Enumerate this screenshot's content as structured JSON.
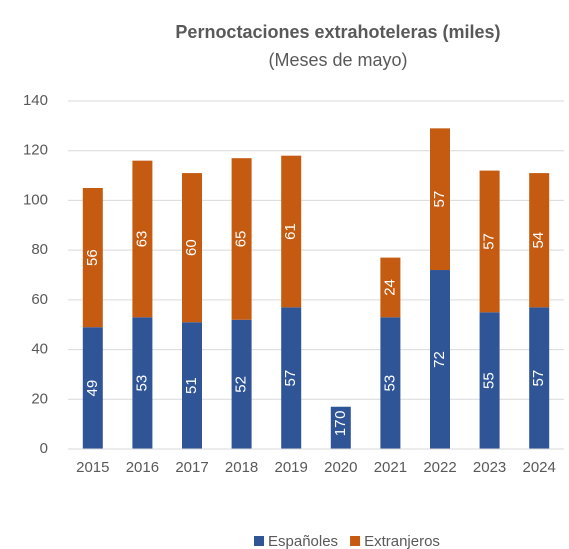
{
  "chart_data": {
    "type": "bar",
    "stacked": true,
    "title": "Pernoctaciones extrahoteleras (miles)",
    "subtitle": "(Meses de mayo)",
    "categories": [
      "2015",
      "2016",
      "2017",
      "2018",
      "2019",
      "2020",
      "2021",
      "2022",
      "2023",
      "2024"
    ],
    "series": [
      {
        "name": "Españoles",
        "color": "#2f5597",
        "values": [
          49,
          53,
          51,
          52,
          57,
          17,
          53,
          72,
          55,
          57
        ]
      },
      {
        "name": "Extranjeros",
        "color": "#c55a11",
        "values": [
          56,
          63,
          60,
          65,
          61,
          0,
          24,
          57,
          57,
          54
        ]
      }
    ],
    "ylim": [
      0,
      140
    ],
    "yticks": [
      0,
      20,
      40,
      60,
      80,
      100,
      120,
      140
    ],
    "grid": true,
    "legend": "bottom"
  }
}
